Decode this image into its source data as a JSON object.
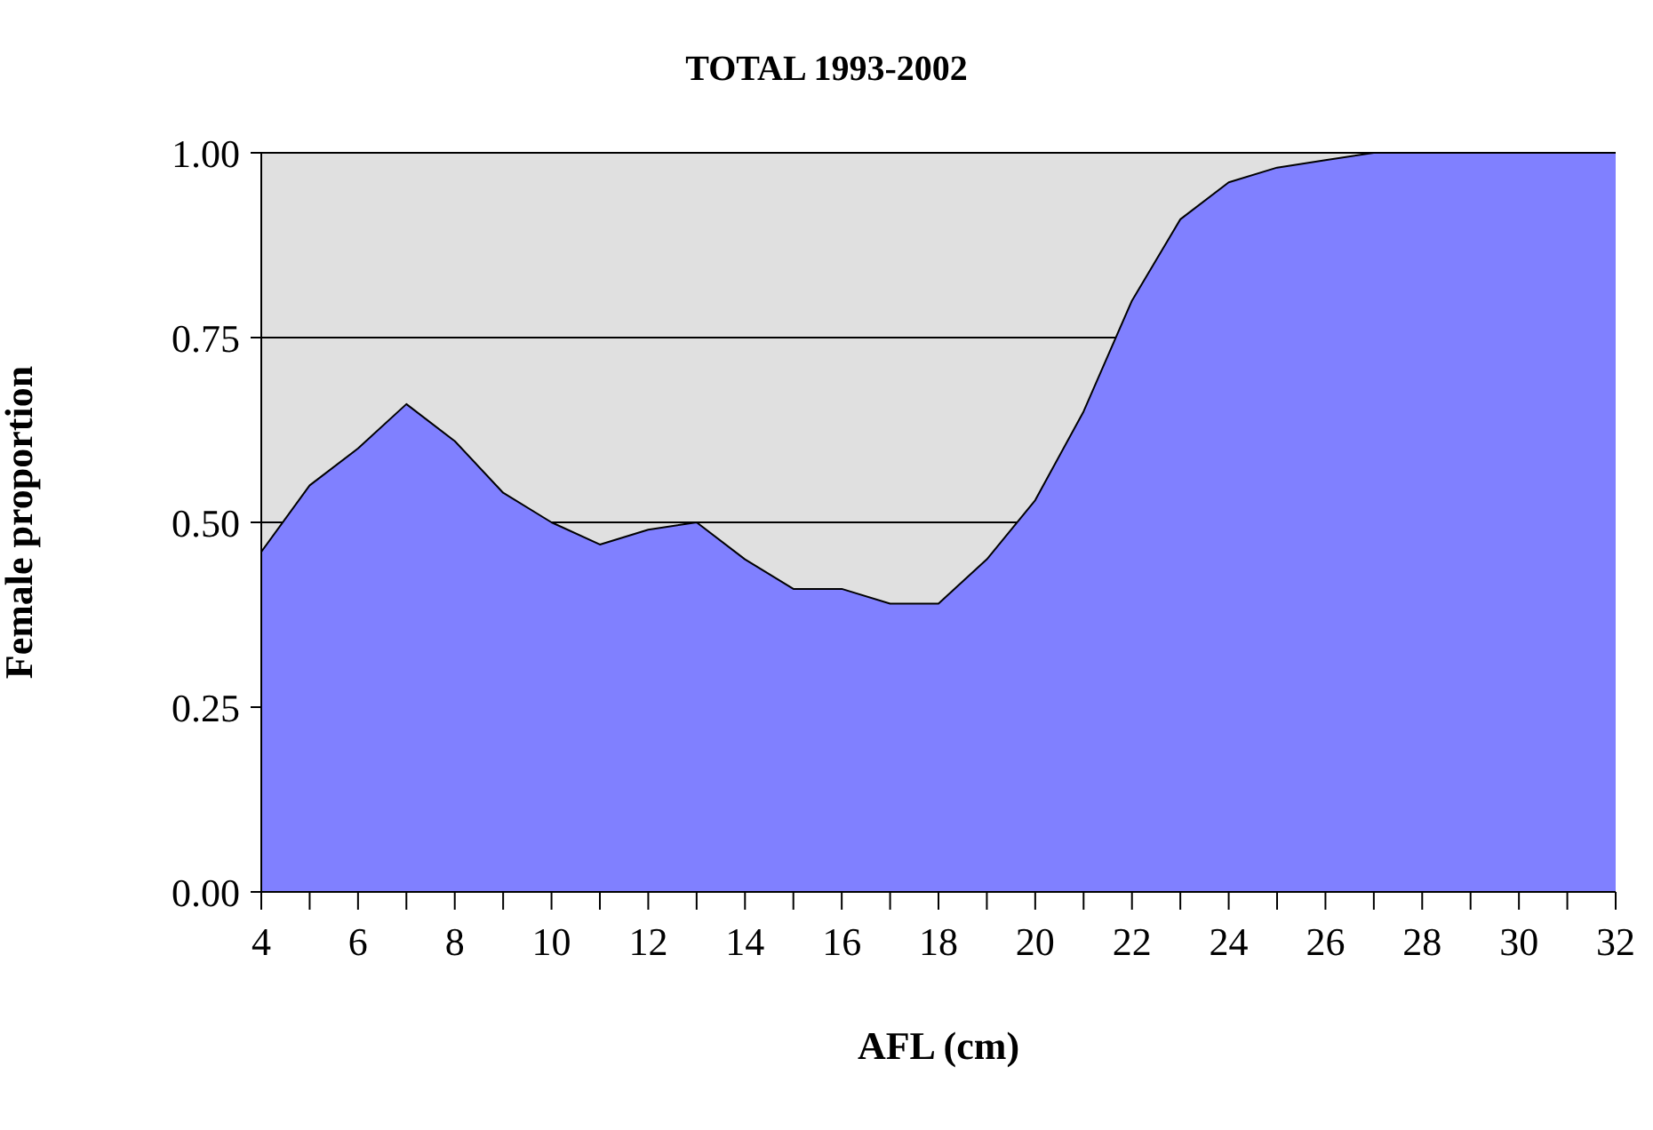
{
  "chart_data": {
    "type": "area",
    "title": "TOTAL 1993-2002",
    "xlabel": "AFL (cm)",
    "ylabel": "Female proportion",
    "x": [
      4,
      5,
      6,
      7,
      8,
      9,
      10,
      11,
      12,
      13,
      14,
      15,
      16,
      17,
      18,
      19,
      20,
      21,
      22,
      23,
      24,
      25,
      26,
      27,
      28,
      29,
      30,
      31,
      32
    ],
    "series": [
      {
        "color": "#8080ff",
        "values": [
          0.46,
          0.55,
          0.6,
          0.66,
          0.61,
          0.54,
          0.5,
          0.47,
          0.49,
          0.5,
          0.45,
          0.41,
          0.41,
          0.39,
          0.39,
          0.45,
          0.53,
          0.65,
          0.8,
          0.91,
          0.96,
          0.98,
          0.99,
          1.0,
          1.0,
          1.0,
          1.0,
          1.0,
          1.0
        ]
      }
    ],
    "xlim": [
      4,
      32
    ],
    "xticks": [
      4,
      {
        "value": 5,
        "label": null
      },
      6,
      {
        "value": 7,
        "label": null
      },
      8,
      {
        "value": 9,
        "label": null
      },
      10,
      {
        "value": 11,
        "label": null
      },
      12,
      {
        "value": 13,
        "label": null
      },
      14,
      {
        "value": 15,
        "label": null
      },
      16,
      {
        "value": 17,
        "label": null
      },
      18,
      {
        "value": 19,
        "label": null
      },
      20,
      {
        "value": 21,
        "label": null
      },
      22,
      {
        "value": 23,
        "label": null
      },
      24,
      {
        "value": 25,
        "label": null
      },
      26,
      {
        "value": 27,
        "label": null
      },
      28,
      {
        "value": 29,
        "label": null
      },
      30,
      {
        "value": 31,
        "label": null
      },
      32
    ],
    "ylim": [
      0,
      1
    ],
    "yticks": [
      {
        "value": 0,
        "label": "0.00"
      },
      {
        "value": 0.25,
        "label": "0.25"
      },
      {
        "value": 0.5,
        "label": "0.50"
      },
      {
        "value": 0.75,
        "label": "0.75"
      },
      {
        "value": 1,
        "label": "1.00"
      }
    ],
    "grid": "y"
  }
}
